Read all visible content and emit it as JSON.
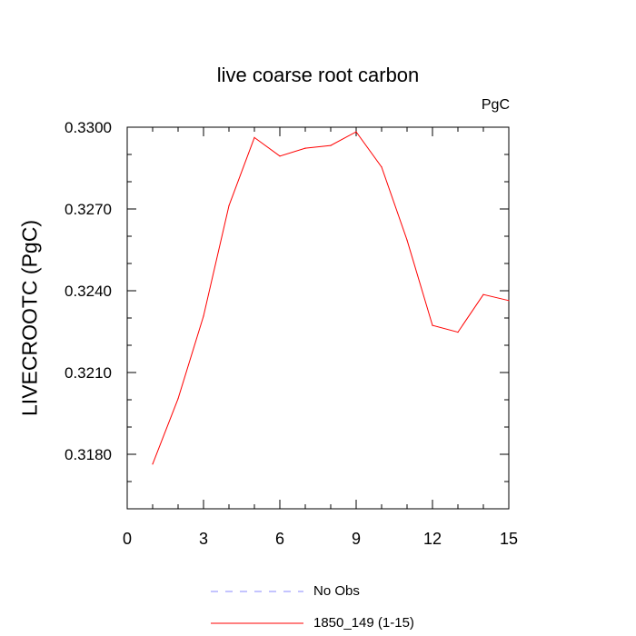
{
  "chart_data": {
    "type": "line",
    "title": "live coarse root carbon",
    "units_label": "PgC",
    "ylabel": "LIVECROOTC  (PgC)",
    "xlabel": "",
    "xlim": [
      0,
      15
    ],
    "ylim": [
      0.316,
      0.33
    ],
    "x_ticks": [
      0,
      3,
      6,
      9,
      12,
      15
    ],
    "x_tick_labels": [
      "0",
      "3",
      "6",
      "9",
      "12",
      "15"
    ],
    "y_ticks": [
      0.318,
      0.321,
      0.324,
      0.327,
      0.33
    ],
    "y_tick_labels": [
      "0.3180",
      "0.3210",
      "0.3240",
      "0.3270",
      "0.3300"
    ],
    "grid": false,
    "legend_placement": "bottom",
    "series": [
      {
        "name": "1850_149 (1-15)",
        "color": "#ff0000",
        "style": "solid",
        "x": [
          1,
          2,
          3,
          4,
          5,
          6,
          7,
          8,
          9,
          10,
          11,
          12,
          13,
          14,
          15
        ],
        "y": [
          0.31764,
          0.32004,
          0.32307,
          0.32712,
          0.32962,
          0.32894,
          0.32923,
          0.32933,
          0.32983,
          0.32854,
          0.32586,
          0.32273,
          0.32248,
          0.32386,
          0.32364
        ]
      }
    ],
    "legend": [
      {
        "label": "No Obs",
        "color": "#8888ff",
        "style": "dashed"
      },
      {
        "label": "1850_149 (1-15)",
        "color": "#ff0000",
        "style": "solid"
      }
    ]
  }
}
